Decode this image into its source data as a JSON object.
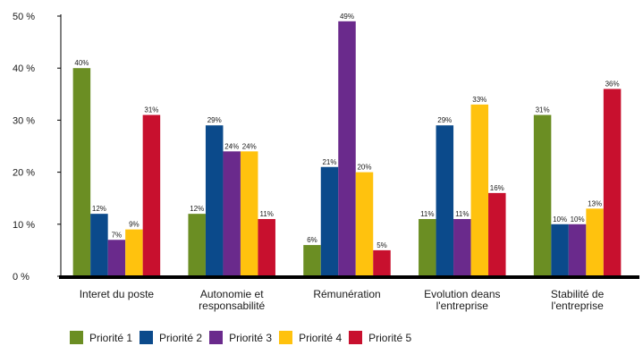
{
  "chart_data": {
    "type": "bar",
    "categories": [
      [
        "Interet du poste"
      ],
      [
        "Autonomie et",
        "responsabilité"
      ],
      [
        "Rémunération"
      ],
      [
        "Evolution deans",
        "l'entreprise"
      ],
      [
        "Stabilité de",
        "l'entreprise"
      ]
    ],
    "series": [
      {
        "name": "Priorité 1",
        "color": "#6b8e23",
        "values": [
          40,
          12,
          6,
          11,
          31
        ]
      },
      {
        "name": "Priorité 2",
        "color": "#0b4a8b",
        "values": [
          12,
          29,
          21,
          29,
          10
        ]
      },
      {
        "name": "Priorité 3",
        "color": "#6a2a8c",
        "values": [
          7,
          24,
          49,
          11,
          10
        ]
      },
      {
        "name": "Priorité 4",
        "color": "#ffc20e",
        "values": [
          9,
          24,
          20,
          33,
          13
        ]
      },
      {
        "name": "Priorité 5",
        "color": "#c8102e",
        "values": [
          31,
          11,
          5,
          16,
          36
        ]
      }
    ],
    "ylim": [
      0,
      50
    ],
    "yticks": [
      0,
      10,
      20,
      30,
      40,
      50
    ],
    "ytick_labels": [
      "0 %",
      "10 %",
      "20 %",
      "30 %",
      "40 %",
      "50 %"
    ],
    "value_suffix": "%",
    "grid": false,
    "legend_position": "bottom",
    "title": "",
    "xlabel": "",
    "ylabel": ""
  }
}
